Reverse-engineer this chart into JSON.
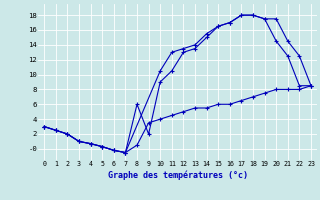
{
  "bg_color": "#cce8e8",
  "grid_color": "#aadddd",
  "line_color": "#0000bb",
  "xlabel": "Graphe des températures (°c)",
  "yticks": [
    0,
    2,
    4,
    6,
    8,
    10,
    12,
    14,
    16,
    18
  ],
  "ytick_labels": [
    "-0",
    "2",
    "4",
    "6",
    "8",
    "10",
    "12",
    "14",
    "16",
    "18"
  ],
  "xticks": [
    0,
    1,
    2,
    3,
    4,
    5,
    6,
    7,
    8,
    9,
    10,
    11,
    12,
    13,
    14,
    15,
    16,
    17,
    18,
    19,
    20,
    21,
    22,
    23
  ],
  "ylim": [
    -1.5,
    19.5
  ],
  "xlim": [
    -0.5,
    23.5
  ],
  "curve1_x": [
    0,
    1,
    2,
    3,
    4,
    5,
    6,
    7,
    10,
    11,
    12,
    13,
    14,
    15,
    16,
    17,
    18,
    19,
    20,
    21,
    22,
    23
  ],
  "curve1_y": [
    3.0,
    2.5,
    2.0,
    1.0,
    0.7,
    0.3,
    -0.2,
    -0.5,
    10.5,
    13.0,
    13.5,
    14.0,
    15.5,
    16.5,
    17.0,
    18.0,
    18.0,
    17.5,
    17.5,
    14.5,
    12.5,
    8.5
  ],
  "curve2_x": [
    0,
    1,
    2,
    3,
    4,
    5,
    6,
    7,
    8,
    9,
    10,
    11,
    12,
    13,
    14,
    15,
    16,
    17,
    18,
    19,
    20,
    21,
    22,
    23
  ],
  "curve2_y": [
    3.0,
    2.5,
    2.0,
    1.0,
    0.7,
    0.3,
    -0.2,
    -0.5,
    6.0,
    2.0,
    9.0,
    10.5,
    13.0,
    13.5,
    15.0,
    16.5,
    17.0,
    18.0,
    18.0,
    17.5,
    14.5,
    12.5,
    8.5,
    8.5
  ],
  "curve3_x": [
    0,
    1,
    2,
    3,
    4,
    5,
    6,
    7,
    8,
    9,
    10,
    11,
    12,
    13,
    14,
    15,
    16,
    17,
    18,
    19,
    20,
    21,
    22,
    23
  ],
  "curve3_y": [
    3.0,
    2.5,
    2.0,
    1.0,
    0.7,
    0.3,
    -0.2,
    -0.5,
    0.5,
    3.5,
    4.0,
    4.5,
    5.0,
    5.5,
    5.5,
    6.0,
    6.0,
    6.5,
    7.0,
    7.5,
    8.0,
    8.0,
    8.0,
    8.5
  ]
}
